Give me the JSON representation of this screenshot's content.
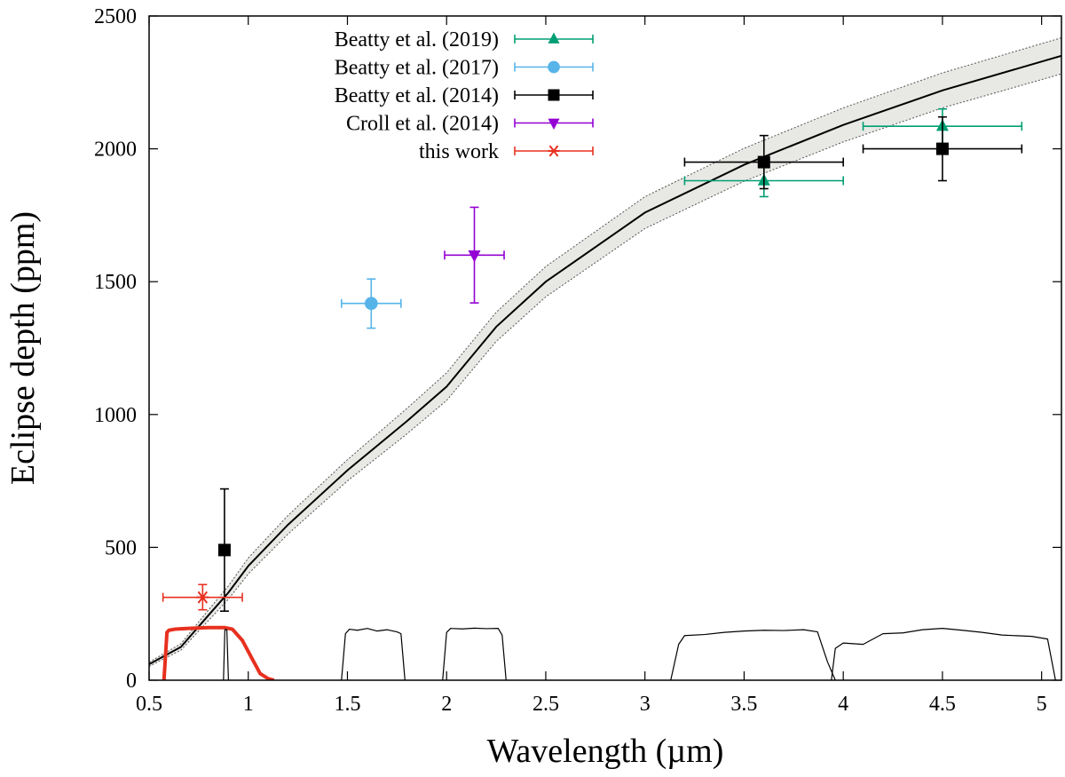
{
  "chart_data": {
    "type": "scatter",
    "xlabel": "Wavelength (µm)",
    "ylabel": "Eclipse depth (ppm)",
    "xlim": [
      0.5,
      5.1
    ],
    "ylim": [
      0,
      2500
    ],
    "x_ticks": [
      0.5,
      1,
      1.5,
      2,
      2.5,
      3,
      3.5,
      4,
      4.5,
      5
    ],
    "x_tick_labels": [
      "0.5",
      "1",
      "1.5",
      "2",
      "2.5",
      "3",
      "3.5",
      "4",
      "4.5",
      "5"
    ],
    "y_ticks": [
      0,
      500,
      1000,
      1500,
      2000,
      2500
    ],
    "y_tick_labels": [
      "0",
      "500",
      "1000",
      "1500",
      "2000",
      "2500"
    ],
    "legend_position": "top-center",
    "series": [
      {
        "name": "Beatty et al. (2019)",
        "color": "#009e73",
        "marker": "triangle-up",
        "points": [
          {
            "x": 3.6,
            "y": 1880,
            "xerr": [
              3.2,
              4.0
            ],
            "yerr": [
              1820,
              1940
            ]
          },
          {
            "x": 4.5,
            "y": 2085,
            "xerr": [
              4.1,
              4.9
            ],
            "yerr": [
              2020,
              2150
            ]
          }
        ]
      },
      {
        "name": "Beatty et al. (2017)",
        "color": "#56b4e9",
        "marker": "circle",
        "points": [
          {
            "x": 1.62,
            "y": 1418,
            "xerr": [
              1.47,
              1.77
            ],
            "yerr": [
              1325,
              1510
            ]
          }
        ]
      },
      {
        "name": "Beatty et al. (2014)",
        "color": "#000000",
        "marker": "square",
        "points": [
          {
            "x": 0.88,
            "y": 490,
            "xerr": null,
            "yerr": [
              260,
              720
            ]
          },
          {
            "x": 3.6,
            "y": 1950,
            "xerr": [
              3.2,
              4.0
            ],
            "yerr": [
              1850,
              2050
            ]
          },
          {
            "x": 4.5,
            "y": 2000,
            "xerr": [
              4.1,
              4.9
            ],
            "yerr": [
              1880,
              2120
            ]
          }
        ]
      },
      {
        "name": "Croll et al. (2014)",
        "color": "#9400d3",
        "marker": "triangle-down",
        "points": [
          {
            "x": 2.14,
            "y": 1600,
            "xerr": [
              1.99,
              2.29
            ],
            "yerr": [
              1420,
              1780
            ]
          }
        ]
      },
      {
        "name": "this work",
        "color": "#e8301f",
        "marker": "asterisk",
        "points": [
          {
            "x": 0.77,
            "y": 312,
            "xerr": [
              0.57,
              0.97
            ],
            "yerr": [
              265,
              360
            ]
          }
        ]
      }
    ],
    "model": {
      "color": "#000000",
      "band_fill": "#e8e9e5",
      "x": [
        0.5,
        0.66,
        0.8,
        0.9,
        1.0,
        1.2,
        1.5,
        1.8,
        2.0,
        2.25,
        2.5,
        3.0,
        3.5,
        4.0,
        4.5,
        5.1
      ],
      "y": [
        60,
        125,
        245,
        330,
        430,
        585,
        790,
        975,
        1105,
        1330,
        1500,
        1760,
        1940,
        2090,
        2220,
        2350
      ],
      "band_halfwidth": [
        8,
        12,
        20,
        25,
        30,
        35,
        40,
        48,
        52,
        55,
        57,
        60,
        62,
        64,
        66,
        68
      ]
    },
    "bandpasses": [
      {
        "name": "this work bandpass",
        "color": "#e8301f",
        "x": [
          0.575,
          0.59,
          0.6,
          0.63,
          0.7,
          0.8,
          0.88,
          0.92,
          0.97,
          1.02,
          1.06,
          1.1,
          1.13
        ],
        "y": [
          0,
          180,
          188,
          192,
          195,
          198,
          198,
          192,
          150,
          80,
          25,
          6,
          0
        ]
      },
      {
        "name": "0.9 micron narrow band",
        "color": "#000000",
        "x": [
          0.875,
          0.882,
          0.892,
          0.9
        ],
        "y": [
          0,
          190,
          190,
          0
        ]
      },
      {
        "name": "1.6 micron band",
        "color": "#000000",
        "x": [
          1.47,
          1.49,
          1.51,
          1.55,
          1.6,
          1.65,
          1.7,
          1.75,
          1.77,
          1.79
        ],
        "y": [
          0,
          175,
          192,
          188,
          195,
          185,
          190,
          182,
          175,
          0
        ]
      },
      {
        "name": "2.1 micron band",
        "color": "#000000",
        "x": [
          1.98,
          2.0,
          2.02,
          2.08,
          2.14,
          2.2,
          2.26,
          2.28,
          2.3
        ],
        "y": [
          0,
          180,
          195,
          193,
          196,
          194,
          195,
          170,
          0
        ]
      },
      {
        "name": "3.6 micron band",
        "color": "#000000",
        "x": [
          3.13,
          3.17,
          3.2,
          3.3,
          3.4,
          3.5,
          3.6,
          3.7,
          3.8,
          3.87,
          3.92,
          3.96
        ],
        "y": [
          0,
          135,
          168,
          172,
          180,
          185,
          188,
          187,
          190,
          182,
          70,
          0
        ]
      },
      {
        "name": "4.5 micron band",
        "color": "#000000",
        "x": [
          3.94,
          3.96,
          4.0,
          4.1,
          4.2,
          4.3,
          4.4,
          4.5,
          4.6,
          4.7,
          4.8,
          4.95,
          5.03,
          5.07
        ],
        "y": [
          0,
          120,
          140,
          135,
          175,
          178,
          190,
          195,
          188,
          180,
          170,
          165,
          155,
          0
        ]
      }
    ]
  }
}
